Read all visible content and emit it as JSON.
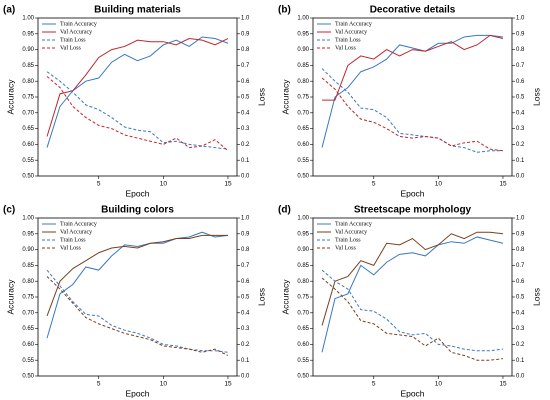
{
  "chart_data": [
    {
      "type": "line",
      "panel_label": "(a)",
      "title": "Building materials",
      "x_label": "Epoch",
      "y_label": "Accuracy",
      "y2_label": "Loss",
      "legend": "upper left",
      "x": [
        1,
        2,
        3,
        4,
        5,
        6,
        7,
        8,
        9,
        10,
        11,
        12,
        13,
        14,
        15
      ],
      "xlim": [
        0.3,
        15.7
      ],
      "xticks": [
        5,
        10,
        15
      ],
      "ylim": [
        0.5,
        1.0
      ],
      "yticks": [
        {
          "value": 0.5,
          "label": "0.50"
        },
        0.55,
        {
          "value": 0.6,
          "label": "0.60"
        },
        0.65,
        {
          "value": 0.7,
          "label": "0.70"
        },
        0.75,
        {
          "value": 0.8,
          "label": "0.80"
        },
        0.85,
        {
          "value": 0.9,
          "label": "0.90"
        },
        0.95,
        {
          "value": 1.0,
          "label": "1.00"
        }
      ],
      "y2lim": [
        0,
        1.0
      ],
      "y2ticks": [
        {
          "value": 0,
          "label": "0.0"
        },
        0.1,
        0.2,
        0.3,
        0.4,
        0.5,
        0.6,
        0.7,
        0.8,
        0.9,
        {
          "value": 1.0,
          "label": "1.0"
        }
      ],
      "series": [
        {
          "name": "Train Accuracy",
          "color": "#3a78c2",
          "linestyle": "solid",
          "values": [
            0.59,
            0.72,
            0.77,
            0.8,
            0.81,
            0.86,
            0.885,
            0.865,
            0.88,
            0.915,
            0.93,
            0.91,
            0.94,
            0.935,
            0.92
          ]
        },
        {
          "name": "Val Accuracy",
          "color": "#c0262d",
          "linestyle": "solid",
          "values": [
            0.625,
            0.76,
            0.77,
            0.82,
            0.875,
            0.9,
            0.91,
            0.93,
            0.925,
            0.925,
            0.915,
            0.935,
            0.93,
            0.915,
            0.935
          ]
        },
        {
          "name": "Train Loss",
          "color": "#3a78c2",
          "linestyle": "dashed",
          "axis": "y2",
          "values": [
            0.66,
            0.6,
            0.53,
            0.45,
            0.42,
            0.37,
            0.31,
            0.29,
            0.28,
            0.21,
            0.22,
            0.2,
            0.19,
            0.18,
            0.17
          ]
        },
        {
          "name": "Val Loss",
          "color": "#c0262d",
          "linestyle": "dashed",
          "axis": "y2",
          "values": [
            0.63,
            0.56,
            0.44,
            0.37,
            0.32,
            0.3,
            0.26,
            0.24,
            0.22,
            0.2,
            0.24,
            0.18,
            0.19,
            0.23,
            0.16
          ]
        }
      ]
    },
    {
      "type": "line",
      "panel_label": "(b)",
      "title": "Decorative details",
      "x_label": "Epoch",
      "y_label": "Accuracy",
      "y2_label": "Loss",
      "legend": "upper left",
      "x": [
        1,
        2,
        3,
        4,
        5,
        6,
        7,
        8,
        9,
        10,
        11,
        12,
        13,
        14,
        15
      ],
      "xlim": [
        0.3,
        15.7
      ],
      "xticks": [
        5,
        10,
        15
      ],
      "ylim": [
        0.5,
        1.0
      ],
      "yticks": [
        {
          "value": 0.5,
          "label": "0.50"
        },
        0.55,
        {
          "value": 0.6,
          "label": "0.60"
        },
        0.65,
        {
          "value": 0.7,
          "label": "0.70"
        },
        0.75,
        {
          "value": 0.8,
          "label": "0.80"
        },
        0.85,
        {
          "value": 0.9,
          "label": "0.90"
        },
        0.95,
        {
          "value": 1.0,
          "label": "1.00"
        }
      ],
      "y2lim": [
        0,
        1.0
      ],
      "y2ticks": [
        {
          "value": 0,
          "label": "0.0"
        },
        0.1,
        0.2,
        0.3,
        0.4,
        0.5,
        0.6,
        0.7,
        0.8,
        0.9,
        {
          "value": 1.0,
          "label": "1.0"
        }
      ],
      "series": [
        {
          "name": "Train Accuracy",
          "color": "#3a78c2",
          "linestyle": "solid",
          "values": [
            0.59,
            0.75,
            0.78,
            0.83,
            0.845,
            0.87,
            0.915,
            0.905,
            0.895,
            0.92,
            0.92,
            0.94,
            0.945,
            0.945,
            0.94
          ]
        },
        {
          "name": "Val Accuracy",
          "color": "#c0262d",
          "linestyle": "solid",
          "values": [
            0.74,
            0.74,
            0.85,
            0.88,
            0.87,
            0.9,
            0.88,
            0.9,
            0.895,
            0.91,
            0.925,
            0.9,
            0.915,
            0.945,
            0.935
          ]
        },
        {
          "name": "Train Loss",
          "color": "#3a78c2",
          "linestyle": "dashed",
          "axis": "y2",
          "values": [
            0.68,
            0.6,
            0.53,
            0.43,
            0.42,
            0.37,
            0.27,
            0.26,
            0.25,
            0.24,
            0.19,
            0.18,
            0.15,
            0.16,
            0.16
          ]
        },
        {
          "name": "Val Loss",
          "color": "#c0262d",
          "linestyle": "dashed",
          "axis": "y2",
          "values": [
            0.62,
            0.55,
            0.44,
            0.36,
            0.34,
            0.3,
            0.25,
            0.24,
            0.25,
            0.24,
            0.19,
            0.21,
            0.22,
            0.17,
            0.16
          ]
        }
      ]
    },
    {
      "type": "line",
      "panel_label": "(c)",
      "title": "Building colors",
      "x_label": "Epoch",
      "y_label": "Accuracy",
      "y2_label": "Loss",
      "legend": "upper left",
      "x": [
        1,
        2,
        3,
        4,
        5,
        6,
        7,
        8,
        9,
        10,
        11,
        12,
        13,
        14,
        15
      ],
      "xlim": [
        0.3,
        15.7
      ],
      "xticks": [
        5,
        10,
        15
      ],
      "ylim": [
        0.5,
        1.0
      ],
      "yticks": [
        {
          "value": 0.5,
          "label": "0.50"
        },
        0.55,
        {
          "value": 0.6,
          "label": "0.60"
        },
        0.65,
        {
          "value": 0.7,
          "label": "0.70"
        },
        0.75,
        {
          "value": 0.8,
          "label": "0.80"
        },
        0.85,
        {
          "value": 0.9,
          "label": "0.90"
        },
        0.95,
        {
          "value": 1.0,
          "label": "1.00"
        }
      ],
      "y2lim": [
        0,
        1.0
      ],
      "y2ticks": [
        {
          "value": 0,
          "label": "0.0"
        },
        0.1,
        0.2,
        0.3,
        0.4,
        0.5,
        0.6,
        0.7,
        0.8,
        0.9,
        {
          "value": 1.0,
          "label": "1.0"
        }
      ],
      "series": [
        {
          "name": "Train Accuracy",
          "color": "#3a78c2",
          "linestyle": "solid",
          "values": [
            0.62,
            0.76,
            0.79,
            0.845,
            0.835,
            0.88,
            0.915,
            0.91,
            0.92,
            0.92,
            0.935,
            0.94,
            0.955,
            0.94,
            0.945
          ]
        },
        {
          "name": "Val Accuracy",
          "color": "#7b3f1e",
          "linestyle": "solid",
          "values": [
            0.69,
            0.8,
            0.84,
            0.865,
            0.89,
            0.905,
            0.91,
            0.905,
            0.92,
            0.925,
            0.935,
            0.935,
            0.945,
            0.945,
            0.945
          ]
        },
        {
          "name": "Train Loss",
          "color": "#3a78c2",
          "linestyle": "dashed",
          "axis": "y2",
          "values": [
            0.67,
            0.57,
            0.47,
            0.39,
            0.38,
            0.32,
            0.29,
            0.27,
            0.24,
            0.2,
            0.19,
            0.17,
            0.16,
            0.16,
            0.15
          ]
        },
        {
          "name": "Val Loss",
          "color": "#7b3f1e",
          "linestyle": "dashed",
          "axis": "y2",
          "values": [
            0.63,
            0.55,
            0.46,
            0.37,
            0.33,
            0.3,
            0.27,
            0.25,
            0.23,
            0.19,
            0.18,
            0.17,
            0.15,
            0.17,
            0.13
          ]
        }
      ]
    },
    {
      "type": "line",
      "panel_label": "(d)",
      "title": "Streetscape morphology",
      "x_label": "Epoch",
      "y_label": "Accuracy",
      "y2_label": "Loss",
      "legend": "upper left",
      "x": [
        1,
        2,
        3,
        4,
        5,
        6,
        7,
        8,
        9,
        10,
        11,
        12,
        13,
        14,
        15
      ],
      "xlim": [
        0.3,
        15.7
      ],
      "xticks": [
        5,
        10,
        15
      ],
      "ylim": [
        0.5,
        1.0
      ],
      "yticks": [
        {
          "value": 0.5,
          "label": "0.50"
        },
        0.55,
        {
          "value": 0.6,
          "label": "0.60"
        },
        0.65,
        {
          "value": 0.7,
          "label": "0.70"
        },
        0.75,
        {
          "value": 0.8,
          "label": "0.80"
        },
        0.85,
        {
          "value": 0.9,
          "label": "0.90"
        },
        0.95,
        {
          "value": 1.0,
          "label": "1.00"
        }
      ],
      "y2lim": [
        0,
        1.0
      ],
      "y2ticks": [
        {
          "value": 0,
          "label": "0.0"
        },
        0.1,
        0.2,
        0.3,
        0.4,
        0.5,
        0.6,
        0.7,
        0.8,
        0.9,
        {
          "value": 1.0,
          "label": "1.0"
        }
      ],
      "series": [
        {
          "name": "Train Accuracy",
          "color": "#3a78c2",
          "linestyle": "solid",
          "values": [
            0.575,
            0.745,
            0.76,
            0.85,
            0.82,
            0.86,
            0.885,
            0.89,
            0.88,
            0.915,
            0.925,
            0.92,
            0.94,
            0.93,
            0.92
          ]
        },
        {
          "name": "Val Accuracy",
          "color": "#7b3f1e",
          "linestyle": "solid",
          "values": [
            0.66,
            0.8,
            0.815,
            0.865,
            0.85,
            0.92,
            0.915,
            0.935,
            0.9,
            0.915,
            0.95,
            0.935,
            0.955,
            0.955,
            0.95
          ]
        },
        {
          "name": "Train Loss",
          "color": "#3a78c2",
          "linestyle": "dashed",
          "axis": "y2",
          "values": [
            0.67,
            0.6,
            0.55,
            0.42,
            0.41,
            0.36,
            0.28,
            0.26,
            0.27,
            0.2,
            0.19,
            0.17,
            0.16,
            0.16,
            0.17
          ]
        },
        {
          "name": "Val Loss",
          "color": "#7b3f1e",
          "linestyle": "dashed",
          "axis": "y2",
          "values": [
            0.62,
            0.55,
            0.47,
            0.35,
            0.33,
            0.27,
            0.26,
            0.25,
            0.19,
            0.24,
            0.15,
            0.13,
            0.1,
            0.1,
            0.11
          ]
        }
      ]
    }
  ]
}
